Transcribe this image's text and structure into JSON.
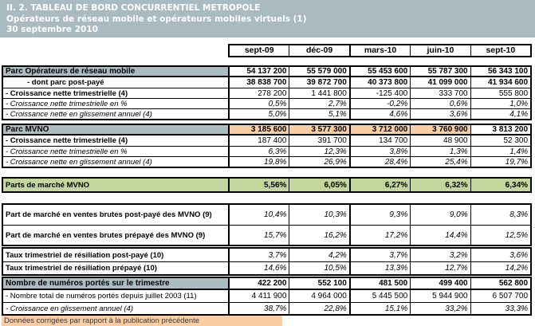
{
  "header": {
    "line1": "II. 2. TABLEAU DE BORD CONCURRENTIEL METROPOLE",
    "line2": "Opérateurs de réseau mobile et opérateurs mobiles virtuels (1)",
    "line3": "30 septembre 2010"
  },
  "table": {
    "columns": [
      "sept-09",
      "déc-09",
      "mars-10",
      "juin-10",
      "sept-10"
    ],
    "blocks": [
      {
        "name": "parc-operateurs-reseau-mobile",
        "rows": [
          {
            "label": "Parc Opérateurs de réseau mobile",
            "label_style": "section-label",
            "value_style": "bold",
            "section": true,
            "values": [
              "54 137 200",
              "55 579 000",
              "55 453 600",
              "55 787 300",
              "56 343 100"
            ]
          },
          {
            "label": "- dont parc post-payé",
            "label_style": "bold indent",
            "value_style": "bold",
            "values": [
              "38 838 700",
              "39 872 700",
              "40 373 800",
              "41 099 000",
              "41 934 600"
            ]
          },
          {
            "label": "- Croissance nette trimestrielle (4)",
            "label_style": "bold",
            "value_style": "",
            "values": [
              "278 200",
              "1 441 800",
              "-125 400",
              "333 700",
              "555 800"
            ]
          },
          {
            "label": "- Croissance nette trimestrielle en %",
            "label_style": "italic",
            "value_style": "italic",
            "values": [
              "0,5%",
              "2,7%",
              "-0,2%",
              "0,6%",
              "1,0%"
            ]
          },
          {
            "label": "- Croissance nette en glissement annuel (4)",
            "label_style": "italic",
            "value_style": "italic",
            "values": [
              "5,0%",
              "5,1%",
              "4,6%",
              "3,6%",
              "4,1%"
            ]
          }
        ]
      },
      {
        "name": "parc-mvno",
        "rows": [
          {
            "label": "Parc MVNO",
            "label_style": "section-label",
            "value_style": "bold",
            "section": true,
            "value_bg": [
              "orange",
              "orange",
              "orange",
              "orange",
              null
            ],
            "values": [
              "3 185 600",
              "3 577 300",
              "3 712 000",
              "3 760 900",
              "3 813 200"
            ]
          },
          {
            "label": "- Croissance nette trimestrielle (4)",
            "label_style": "bold",
            "value_style": "",
            "values": [
              "187 400",
              "391 700",
              "134 700",
              "48 900",
              "52 300"
            ]
          },
          {
            "label": "- Croissance nette trimestrielle en %",
            "label_style": "italic",
            "value_style": "italic",
            "values": [
              "6,3%",
              "12,3%",
              "3,8%",
              "1,3%",
              "1,4%"
            ]
          },
          {
            "label": "- Croissance nette en glissement annuel (4)",
            "label_style": "italic",
            "value_style": "italic",
            "values": [
              "19,8%",
              "26,9%",
              "28,4%",
              "25,4%",
              "19,7%"
            ]
          }
        ]
      },
      {
        "name": "parts-de-marche-mvno",
        "rows": [
          {
            "label": "Parts de marché MVNO",
            "label_style": "bold bg-green",
            "value_style": "bold",
            "value_bg": "green",
            "values": [
              "5,56%",
              "6,05%",
              "6,27%",
              "6,32%",
              "6,34%"
            ]
          }
        ]
      },
      {
        "name": "parts-marche-ventes-brutes",
        "rows": [
          {
            "label": "Part de marché en ventes brutes post-payé des MVNO (9)",
            "label_style": "bold",
            "value_style": "italic",
            "values": [
              "10,4%",
              "10,3%",
              "9,3%",
              "9,0%",
              "8,3%"
            ]
          },
          {
            "label": "Part de marché en ventes brutes prépayé des MVNO (9)",
            "label_style": "bold",
            "value_style": "italic",
            "values": [
              "15,7%",
              "16,2%",
              "17,2%",
              "14,4%",
              "12,5%"
            ]
          }
        ]
      },
      {
        "name": "taux-resiliation",
        "rows": [
          {
            "label": "Taux trimestriel de résiliation post-payé (10)",
            "label_style": "bold",
            "value_style": "italic",
            "values": [
              "3,7%",
              "4,2%",
              "3,7%",
              "3,2%",
              "3,6%"
            ]
          },
          {
            "label": "Taux trimestriel de résiliation prépayé (10)",
            "label_style": "bold",
            "value_style": "italic",
            "values": [
              "14,6%",
              "10,5%",
              "13,3%",
              "12,7%",
              "14,2%"
            ]
          }
        ]
      },
      {
        "name": "numeros-portes",
        "rows": [
          {
            "label": "Nombre de numéros portés sur le trimestre",
            "label_style": "section-label",
            "value_style": "bold",
            "section": true,
            "values": [
              "422 200",
              "552 100",
              "481 500",
              "499 400",
              "562 800"
            ]
          },
          {
            "label": "- Nombre total de numéros portés depuis juillet 2003 (11)",
            "label_style": "",
            "value_style": "",
            "values": [
              "4 411 900",
              "4 964 000",
              "5 445 500",
              "5 944 900",
              "6 507 700"
            ]
          },
          {
            "label": "- Croissance en glissement annuel (4)",
            "label_style": "italic",
            "value_style": "italic",
            "values": [
              "38,7%",
              "22,8%",
              "15,1%",
              "33,2%",
              "33,3%"
            ]
          }
        ]
      }
    ]
  },
  "footer_note": "Données corrigées par rapport à la publication précédente",
  "colors": {
    "band": "#a9bac0",
    "section_header": "#abbcc2",
    "highlight_orange": "#fbcda2",
    "highlight_green": "#c3d69b"
  }
}
